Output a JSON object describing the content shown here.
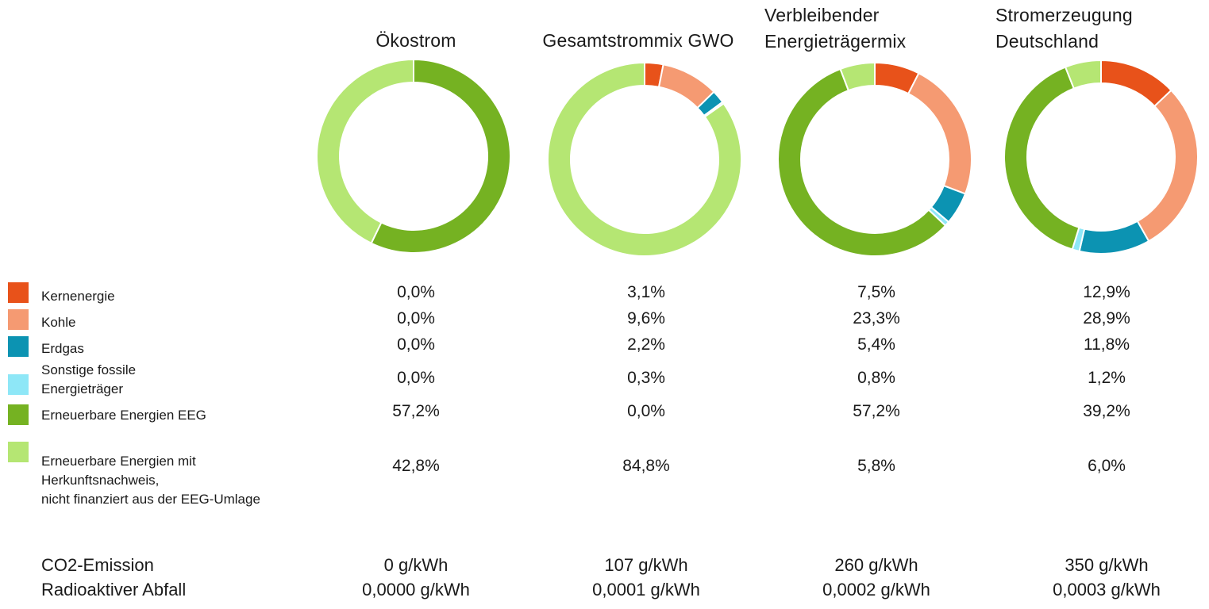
{
  "colors": {
    "Kernenergie": "#e8521a",
    "Kohle": "#f59a72",
    "Erdgas": "#0c93b2",
    "Sonstige": "#8ee7f7",
    "EEG": "#75b222",
    "HKN": "#b5e673"
  },
  "chart_data": {
    "type": "pie",
    "categories": [
      "Kernenergie",
      "Kohle",
      "Erdgas",
      "Sonstige fossile Energieträger",
      "Erneuerbare Energien EEG",
      "Erneuerbare Energien mit Herkunftsnachweis, nicht finanziert aus der EEG-Umlage"
    ],
    "series": [
      {
        "name": "Ökostrom",
        "values": [
          0.0,
          0.0,
          0.0,
          0.0,
          57.2,
          42.8
        ]
      },
      {
        "name": "Gesamtstrommix GWO",
        "values": [
          3.1,
          9.6,
          2.2,
          0.3,
          0.0,
          84.8
        ]
      },
      {
        "name": "Verbleibender Energieträgermix",
        "values": [
          7.5,
          23.3,
          5.4,
          0.8,
          57.2,
          5.8
        ]
      },
      {
        "name": "Stromerzeugung Deutschland",
        "values": [
          12.9,
          28.9,
          11.8,
          1.2,
          39.2,
          6.0
        ]
      }
    ]
  },
  "titles": {
    "c1": [
      "Ökostrom"
    ],
    "c2": [
      "Gesamtstrommix GWO"
    ],
    "c3": [
      "Verbleibender",
      "Energieträgermix"
    ],
    "c4": [
      "Stromerzeugung",
      "Deutschland"
    ]
  },
  "legend": {
    "kern": "Kernenergie",
    "kohle": "Kohle",
    "erdgas": "Erdgas",
    "sonst_1": "Sonstige fossile",
    "sonst_2": "Energieträger",
    "eeg": "Erneuerbare Energien EEG",
    "hkn_1": "Erneuerbare Energien mit",
    "hkn_2": "Herkunftsnachweis,",
    "hkn_3": "nicht finanziert aus der EEG-Umlage"
  },
  "table": {
    "c1": [
      "0,0%",
      "0,0%",
      "0,0%",
      "0,0%",
      "57,2%",
      "42,8%"
    ],
    "c2": [
      "3,1%",
      "9,6%",
      "2,2%",
      "0,3%",
      "0,0%",
      "84,8%"
    ],
    "c3": [
      "7,5%",
      "23,3%",
      "5,4%",
      "0,8%",
      "57,2%",
      "5,8%"
    ],
    "c4": [
      "12,9%",
      "28,9%",
      "11,8%",
      "1,2%",
      "39,2%",
      "6,0%"
    ]
  },
  "footer": {
    "co2_label": "CO2-Emission",
    "waste_label": "Radioaktiver Abfall",
    "co2": [
      "0 g/kWh",
      "107 g/kWh",
      "260 g/kWh",
      "350 g/kWh"
    ],
    "waste": [
      "0,0000 g/kWh",
      "0,0001 g/kWh",
      "0,0002 g/kWh",
      "0,0003 g/kWh"
    ]
  }
}
